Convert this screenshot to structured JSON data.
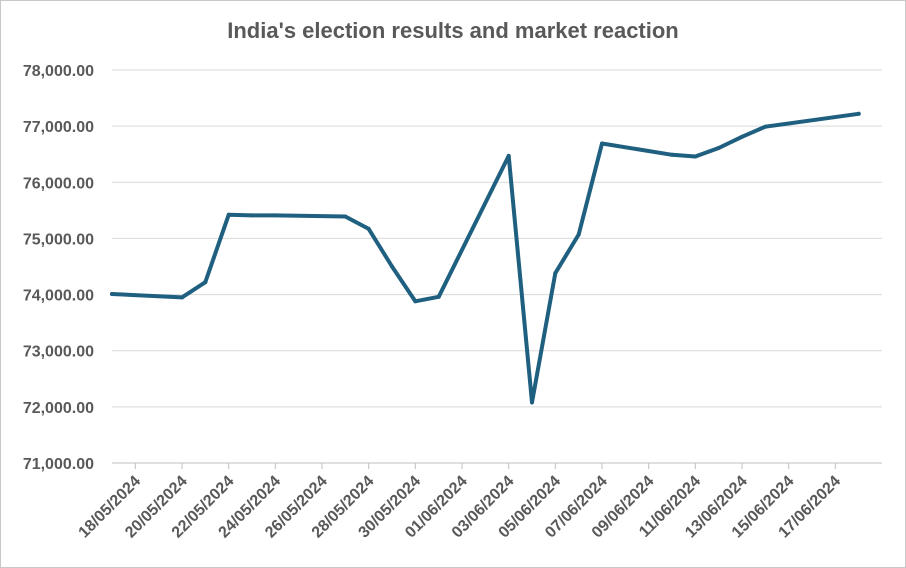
{
  "chart_data": {
    "type": "line",
    "title": "India's election results and market reaction",
    "xlabel": "",
    "ylabel": "",
    "ylim": [
      71000,
      78000
    ],
    "yticks": [
      71000,
      72000,
      73000,
      74000,
      75000,
      76000,
      77000,
      78000
    ],
    "ytick_labels": [
      "71,000.00",
      "72,000.00",
      "73,000.00",
      "74,000.00",
      "75,000.00",
      "76,000.00",
      "77,000.00",
      "78,000.00"
    ],
    "xlim": [
      "2024-05-17",
      "2024-06-19"
    ],
    "xtick_labels": [
      "18/05/2024",
      "20/05/2024",
      "22/05/2024",
      "24/05/2024",
      "26/05/2024",
      "28/05/2024",
      "30/05/2024",
      "01/06/2024",
      "03/06/2024",
      "05/06/2024",
      "07/06/2024",
      "09/06/2024",
      "11/06/2024",
      "13/06/2024",
      "15/06/2024",
      "17/06/2024"
    ],
    "xtick_dates": [
      "2024-05-18",
      "2024-05-20",
      "2024-05-22",
      "2024-05-24",
      "2024-05-26",
      "2024-05-28",
      "2024-05-30",
      "2024-06-01",
      "2024-06-03",
      "2024-06-05",
      "2024-06-07",
      "2024-06-09",
      "2024-06-11",
      "2024-06-13",
      "2024-06-15",
      "2024-06-17"
    ],
    "grid": true,
    "line_color": "#1f5f7f",
    "series": [
      {
        "name": "",
        "x": [
          "2024-05-17",
          "2024-05-20",
          "2024-05-21",
          "2024-05-22",
          "2024-05-23",
          "2024-05-24",
          "2024-05-27",
          "2024-05-28",
          "2024-05-29",
          "2024-05-30",
          "2024-05-31",
          "2024-06-03",
          "2024-06-04",
          "2024-06-05",
          "2024-06-06",
          "2024-06-07",
          "2024-06-10",
          "2024-06-11",
          "2024-06-12",
          "2024-06-13",
          "2024-06-14",
          "2024-06-18"
        ],
        "values": [
          74010,
          73950,
          74220,
          75420,
          75410,
          75410,
          75390,
          75170,
          74500,
          73880,
          73960,
          76470,
          72080,
          74380,
          75070,
          76690,
          76490,
          76460,
          76610,
          76810,
          76990,
          77220
        ]
      }
    ]
  }
}
